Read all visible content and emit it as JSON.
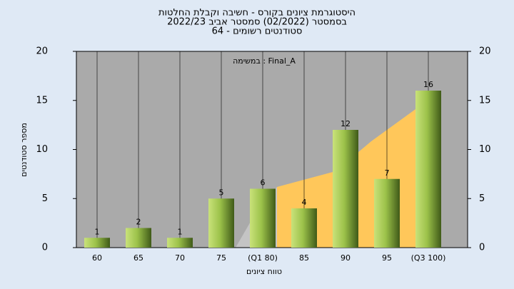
{
  "chart_data": {
    "type": "bar",
    "title": "היסטוגרמת ציונים בקורס - חשיבה וקבלת החלטות",
    "subtitle": "בסמסטר  (02/2022)  סמסטר אביב 2022/23",
    "subtitle2": "סטודנטים רשומים - 64",
    "annotation": "Final_A : במשימה",
    "x_label": "טווח ציונים",
    "y_label": "מספר סטודנטים",
    "categories": [
      "60",
      "65",
      "70",
      "75",
      "(Q1 80)",
      "85",
      "90",
      "95",
      "(Q3 100)"
    ],
    "values": [
      1,
      2,
      1,
      5,
      6,
      4,
      12,
      7,
      16
    ],
    "color": "#8fb840",
    "ylim": [
      0,
      20
    ],
    "yticks": [
      0,
      5,
      10,
      15,
      20
    ],
    "y2lim": [
      0,
      20
    ],
    "y2ticks": [
      0,
      5,
      10,
      15,
      20
    ],
    "grid": true
  }
}
